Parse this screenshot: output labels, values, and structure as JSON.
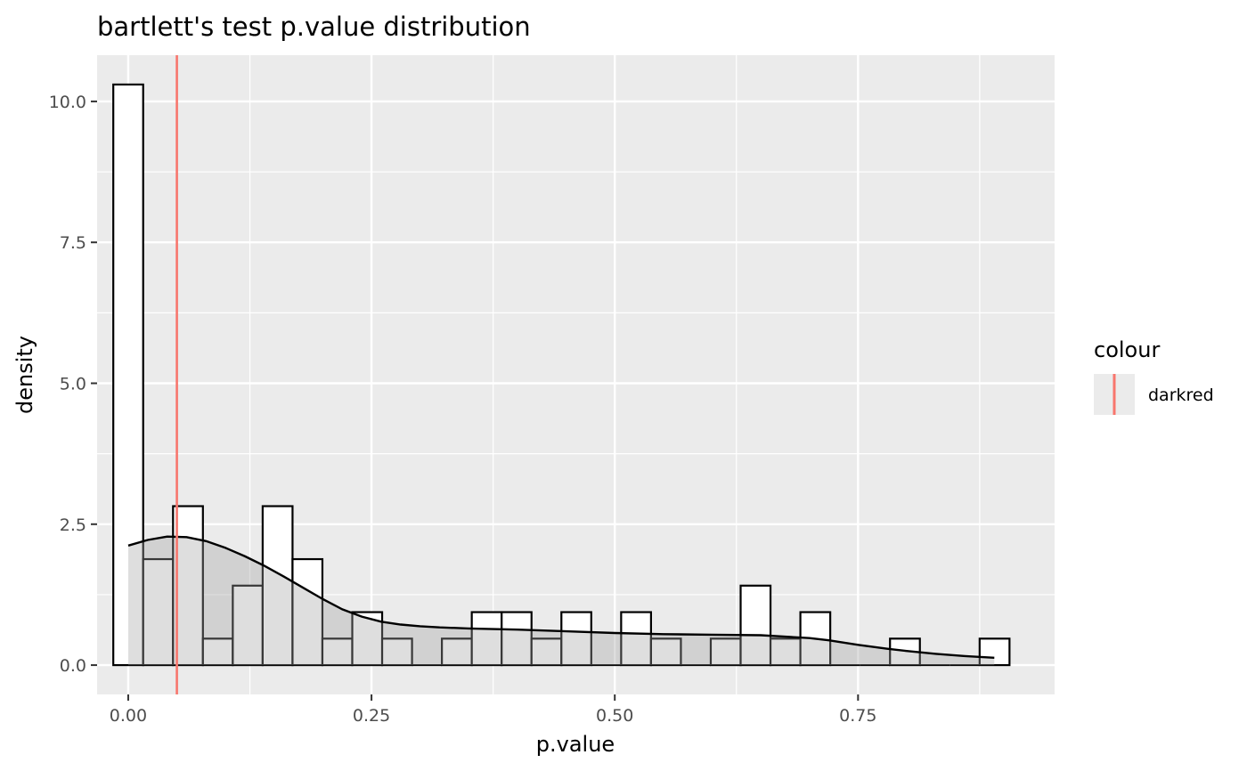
{
  "chart_data": {
    "type": "bar",
    "subtype": "histogram-with-density",
    "title": "bartlett's test p.value distribution",
    "xlabel": "p.value",
    "ylabel": "density",
    "xlim": [
      -0.032,
      0.952
    ],
    "ylim": [
      -0.52,
      10.82
    ],
    "x_ticks": [
      0.0,
      0.25,
      0.5,
      0.75
    ],
    "x_tick_labels": [
      "0.00",
      "0.25",
      "0.50",
      "0.75"
    ],
    "y_ticks": [
      0.0,
      2.5,
      5.0,
      7.5,
      10.0
    ],
    "y_tick_labels": [
      "0.0",
      "2.5",
      "5.0",
      "7.5",
      "10.0"
    ],
    "grid": true,
    "histogram": {
      "bin_width": 0.0307,
      "bins": [
        {
          "x": 0.0,
          "density": 10.3
        },
        {
          "x": 0.0307,
          "density": 1.88
        },
        {
          "x": 0.0614,
          "density": 2.82
        },
        {
          "x": 0.0921,
          "density": 0.47
        },
        {
          "x": 0.1228,
          "density": 1.41
        },
        {
          "x": 0.1535,
          "density": 2.82
        },
        {
          "x": 0.1842,
          "density": 1.88
        },
        {
          "x": 0.2149,
          "density": 0.47
        },
        {
          "x": 0.2456,
          "density": 0.94
        },
        {
          "x": 0.2763,
          "density": 0.47
        },
        {
          "x": 0.307,
          "density": 0.0
        },
        {
          "x": 0.3377,
          "density": 0.47
        },
        {
          "x": 0.3684,
          "density": 0.94
        },
        {
          "x": 0.3991,
          "density": 0.94
        },
        {
          "x": 0.4298,
          "density": 0.47
        },
        {
          "x": 0.4605,
          "density": 0.94
        },
        {
          "x": 0.4912,
          "density": 0.0
        },
        {
          "x": 0.5219,
          "density": 0.94
        },
        {
          "x": 0.5526,
          "density": 0.47
        },
        {
          "x": 0.5833,
          "density": 0.0
        },
        {
          "x": 0.614,
          "density": 0.47
        },
        {
          "x": 0.6447,
          "density": 1.41
        },
        {
          "x": 0.6754,
          "density": 0.47
        },
        {
          "x": 0.7061,
          "density": 0.94
        },
        {
          "x": 0.7368,
          "density": 0.0
        },
        {
          "x": 0.7675,
          "density": 0.0
        },
        {
          "x": 0.7982,
          "density": 0.47
        },
        {
          "x": 0.8289,
          "density": 0.0
        },
        {
          "x": 0.8596,
          "density": 0.0
        },
        {
          "x": 0.8903,
          "density": 0.47
        }
      ]
    },
    "density_curve": {
      "x": [
        0.0,
        0.02,
        0.04,
        0.06,
        0.08,
        0.1,
        0.12,
        0.14,
        0.16,
        0.18,
        0.2,
        0.22,
        0.24,
        0.26,
        0.28,
        0.3,
        0.32,
        0.35,
        0.4,
        0.45,
        0.5,
        0.55,
        0.6,
        0.65,
        0.7,
        0.72,
        0.75,
        0.78,
        0.8,
        0.83,
        0.86,
        0.89
      ],
      "y": [
        2.12,
        2.22,
        2.28,
        2.27,
        2.2,
        2.08,
        1.93,
        1.76,
        1.57,
        1.37,
        1.17,
        0.99,
        0.86,
        0.77,
        0.72,
        0.69,
        0.67,
        0.65,
        0.63,
        0.6,
        0.57,
        0.55,
        0.54,
        0.53,
        0.48,
        0.44,
        0.36,
        0.29,
        0.25,
        0.2,
        0.16,
        0.13
      ]
    },
    "vline": {
      "x": 0.05
    },
    "colors": {
      "panel_background": "#ebebeb",
      "grid": "#ffffff",
      "bar_fill": "#ffffff",
      "bar_outline": "#000000",
      "density_fill": "rgba(160,160,160,0.35)",
      "density_line": "#000000",
      "vline": "#f8766d"
    },
    "legend": {
      "title": "colour",
      "placement": "right",
      "entries": [
        {
          "label": "darkred",
          "color": "#f8766d"
        }
      ]
    }
  }
}
